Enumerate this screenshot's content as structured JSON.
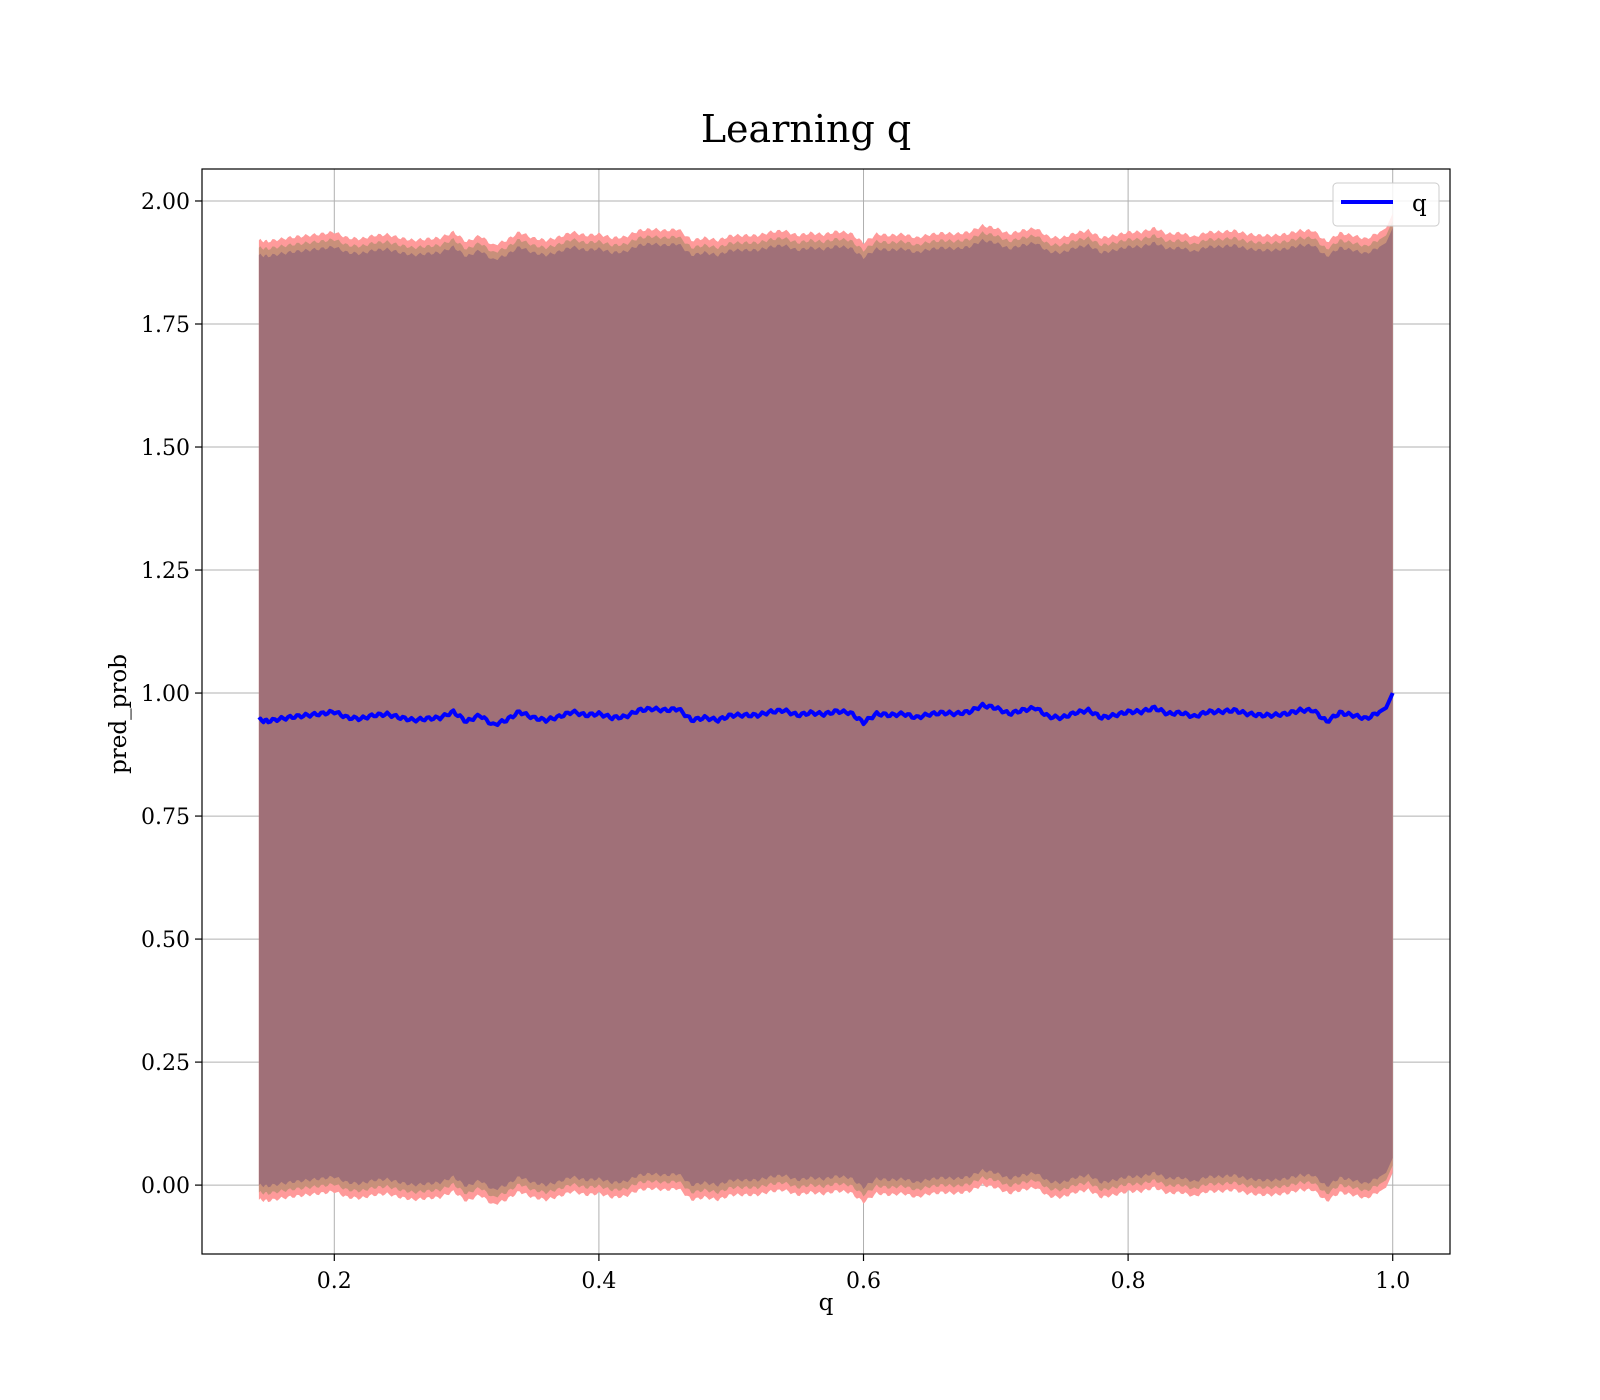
{
  "chart_data": {
    "type": "line",
    "title": "Learning q",
    "xlabel": "q",
    "ylabel": "pred_prob",
    "xlim": [
      0.1,
      1.043
    ],
    "ylim": [
      -0.14,
      2.065
    ],
    "xticks": [
      0.2,
      0.4,
      0.6,
      0.8,
      1.0
    ],
    "xtick_labels": [
      "0.2",
      "0.4",
      "0.6",
      "0.8",
      "1.0"
    ],
    "yticks": [
      0.0,
      0.25,
      0.5,
      0.75,
      1.0,
      1.25,
      1.5,
      1.75,
      2.0
    ],
    "ytick_labels": [
      "0.00",
      "0.25",
      "0.50",
      "0.75",
      "1.00",
      "1.25",
      "1.50",
      "1.75",
      "2.00"
    ],
    "grid": true,
    "legend": {
      "placement": "upper-right",
      "entries": [
        "q"
      ]
    },
    "colors": {
      "line": "#0000ff",
      "band_outer": "#ff9a9a",
      "band_mid": "#c8907a",
      "band_inner": "#a07078",
      "grid": "#b0b0b0"
    },
    "band_widths": {
      "outer": 0.975,
      "mid": 0.96,
      "inner": 0.945
    },
    "x": [
      0.143,
      0.15,
      0.16,
      0.17,
      0.18,
      0.19,
      0.2,
      0.21,
      0.22,
      0.23,
      0.24,
      0.25,
      0.26,
      0.27,
      0.28,
      0.29,
      0.3,
      0.31,
      0.32,
      0.33,
      0.34,
      0.35,
      0.36,
      0.37,
      0.38,
      0.39,
      0.4,
      0.41,
      0.42,
      0.43,
      0.44,
      0.45,
      0.46,
      0.47,
      0.48,
      0.49,
      0.5,
      0.51,
      0.52,
      0.53,
      0.54,
      0.55,
      0.56,
      0.57,
      0.58,
      0.59,
      0.6,
      0.61,
      0.62,
      0.63,
      0.64,
      0.65,
      0.66,
      0.67,
      0.68,
      0.69,
      0.7,
      0.71,
      0.72,
      0.73,
      0.74,
      0.75,
      0.76,
      0.77,
      0.78,
      0.79,
      0.8,
      0.81,
      0.82,
      0.83,
      0.84,
      0.85,
      0.86,
      0.87,
      0.88,
      0.89,
      0.9,
      0.91,
      0.92,
      0.93,
      0.94,
      0.95,
      0.96,
      0.97,
      0.98,
      0.99,
      0.995,
      1.0
    ],
    "series": [
      {
        "name": "q",
        "values": [
          0.945,
          0.943,
          0.948,
          0.952,
          0.955,
          0.958,
          0.962,
          0.95,
          0.948,
          0.955,
          0.957,
          0.95,
          0.945,
          0.948,
          0.95,
          0.962,
          0.942,
          0.955,
          0.935,
          0.945,
          0.962,
          0.95,
          0.945,
          0.952,
          0.962,
          0.955,
          0.958,
          0.95,
          0.952,
          0.965,
          0.968,
          0.965,
          0.968,
          0.945,
          0.95,
          0.945,
          0.955,
          0.955,
          0.955,
          0.962,
          0.965,
          0.955,
          0.96,
          0.957,
          0.963,
          0.96,
          0.94,
          0.958,
          0.955,
          0.958,
          0.95,
          0.957,
          0.96,
          0.958,
          0.962,
          0.975,
          0.97,
          0.958,
          0.965,
          0.97,
          0.952,
          0.95,
          0.96,
          0.965,
          0.95,
          0.955,
          0.962,
          0.962,
          0.97,
          0.958,
          0.96,
          0.952,
          0.962,
          0.962,
          0.965,
          0.958,
          0.955,
          0.955,
          0.958,
          0.965,
          0.965,
          0.942,
          0.96,
          0.955,
          0.948,
          0.962,
          0.97,
          1.0
        ]
      }
    ]
  }
}
